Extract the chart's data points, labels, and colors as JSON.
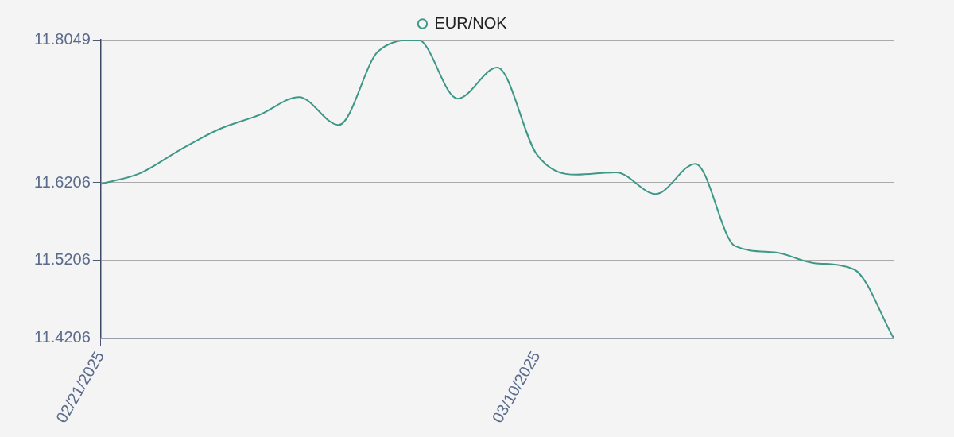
{
  "chart_data": {
    "type": "line",
    "categories": [
      "02/21/2025",
      null,
      null,
      null,
      null,
      null,
      null,
      null,
      null,
      null,
      null,
      "03/10/2025",
      null,
      null,
      null,
      null,
      null,
      null,
      null,
      null,
      null
    ],
    "series": [
      {
        "name": "EUR/NOK",
        "color": "#3e9887",
        "values": [
          11.619,
          11.633,
          11.663,
          11.69,
          11.708,
          11.731,
          11.695,
          11.79,
          11.8049,
          11.729,
          11.769,
          11.657,
          11.631,
          11.634,
          11.606,
          11.645,
          11.539,
          11.531,
          11.517,
          11.509,
          11.4206
        ]
      }
    ],
    "ylim": [
      11.4206,
      11.8049
    ],
    "yticks": [
      11.4206,
      11.5206,
      11.6206,
      11.8049
    ],
    "grid": true,
    "legend": "top",
    "marker": "none",
    "line_style": "solid"
  }
}
